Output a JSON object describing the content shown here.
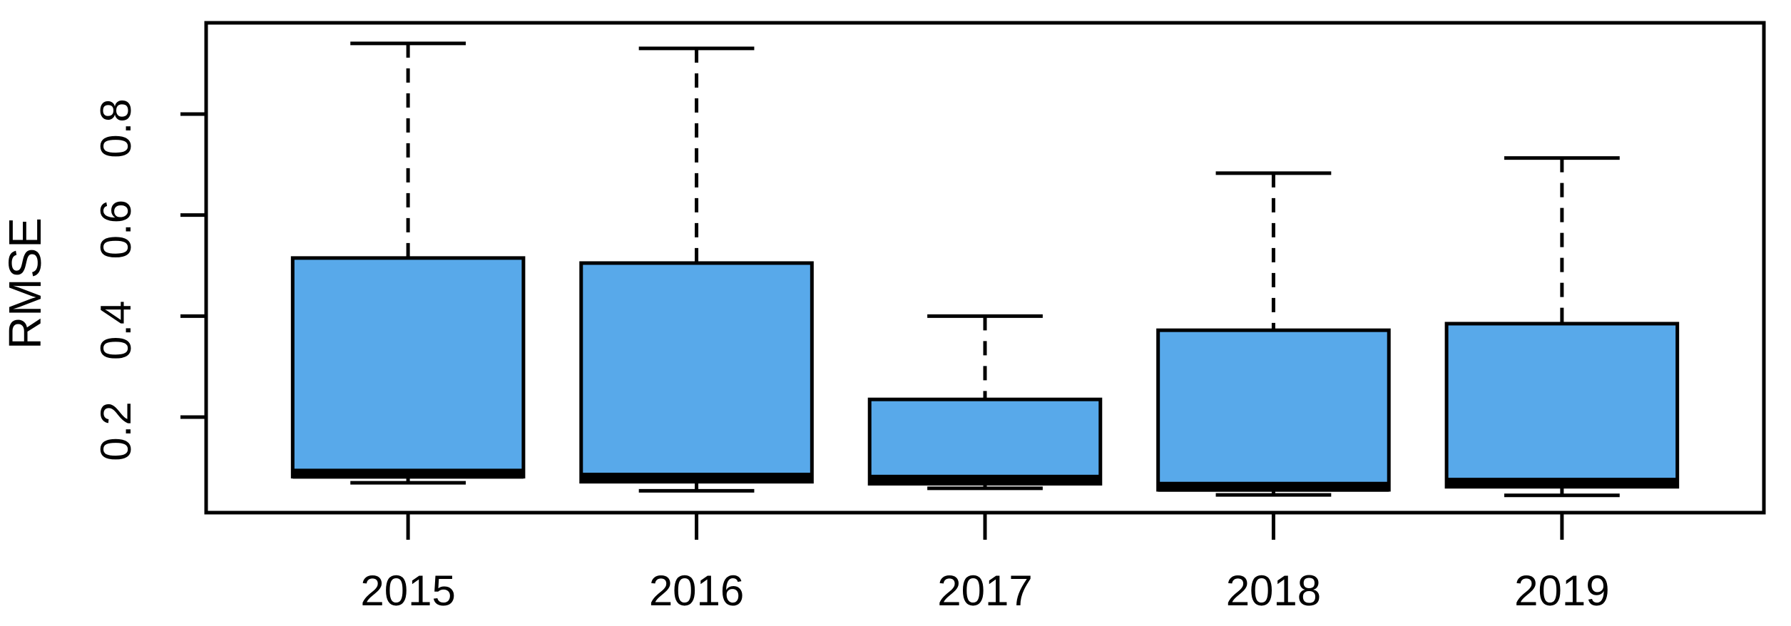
{
  "chart_data": {
    "type": "boxplot",
    "title": "",
    "xlabel": "",
    "ylabel": "RMSE",
    "categories": [
      "2015",
      "2016",
      "2017",
      "2018",
      "2019"
    ],
    "stats": [
      {
        "category": "2015",
        "min": 0.07,
        "q1": 0.082,
        "median": 0.088,
        "q3": 0.515,
        "max": 0.94
      },
      {
        "category": "2016",
        "min": 0.054,
        "q1": 0.072,
        "median": 0.08,
        "q3": 0.505,
        "max": 0.93
      },
      {
        "category": "2017",
        "min": 0.059,
        "q1": 0.068,
        "median": 0.076,
        "q3": 0.235,
        "max": 0.4
      },
      {
        "category": "2018",
        "min": 0.046,
        "q1": 0.056,
        "median": 0.062,
        "q3": 0.372,
        "max": 0.683
      },
      {
        "category": "2019",
        "min": 0.045,
        "q1": 0.062,
        "median": 0.07,
        "q3": 0.385,
        "max": 0.713
      }
    ],
    "outliers": [],
    "y_ticks": [
      0.2,
      0.4,
      0.6,
      0.8
    ],
    "y_tick_labels": [
      "0.2",
      "0.4",
      "0.6",
      "0.8"
    ],
    "x_tick_labels": [
      "2015",
      "2016",
      "2017",
      "2018",
      "2019"
    ],
    "ylim": [
      0.011,
      0.981
    ],
    "grid": false,
    "legend": null,
    "layout_hints": {
      "box_width_fraction": 0.8,
      "staple_width_fraction": 0.5,
      "whisker_style": "dashed"
    },
    "colors": {
      "box_fill": "#58a9ea",
      "stroke": "#000000",
      "background": "#ffffff"
    }
  }
}
